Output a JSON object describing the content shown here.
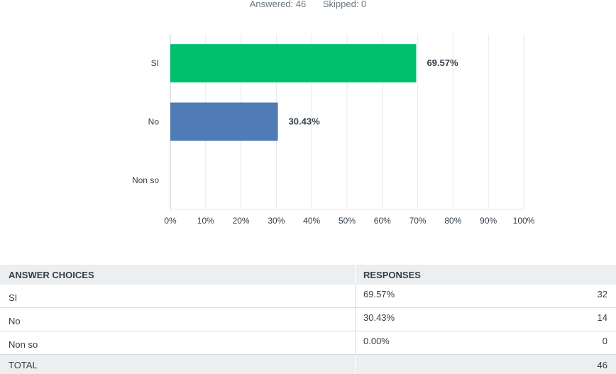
{
  "summary": {
    "answered_label": "Answered: 46",
    "skipped_label": "Skipped: 0"
  },
  "chart_data": {
    "type": "bar",
    "orientation": "horizontal",
    "categories": [
      "SI",
      "No",
      "Non so"
    ],
    "values": [
      69.57,
      30.43,
      0
    ],
    "value_labels": [
      "69.57%",
      "30.43%",
      ""
    ],
    "colors": [
      "#00bf6f",
      "#507cb6",
      "#f9be00"
    ],
    "xlim": [
      0,
      100
    ],
    "xticks": [
      0,
      10,
      20,
      30,
      40,
      50,
      60,
      70,
      80,
      90,
      100
    ],
    "xtick_labels": [
      "0%",
      "10%",
      "20%",
      "30%",
      "40%",
      "50%",
      "60%",
      "70%",
      "80%",
      "90%",
      "100%"
    ],
    "grid": true,
    "title": "",
    "xlabel": "",
    "ylabel": ""
  },
  "table": {
    "header": {
      "choices": "ANSWER CHOICES",
      "responses": "RESPONSES"
    },
    "rows": [
      {
        "choice": "SI",
        "percent": "69.57%",
        "count": "32"
      },
      {
        "choice": "No",
        "percent": "30.43%",
        "count": "14"
      },
      {
        "choice": "Non so",
        "percent": "0.00%",
        "count": "0"
      }
    ],
    "total": {
      "label": "TOTAL",
      "count": "46"
    }
  }
}
